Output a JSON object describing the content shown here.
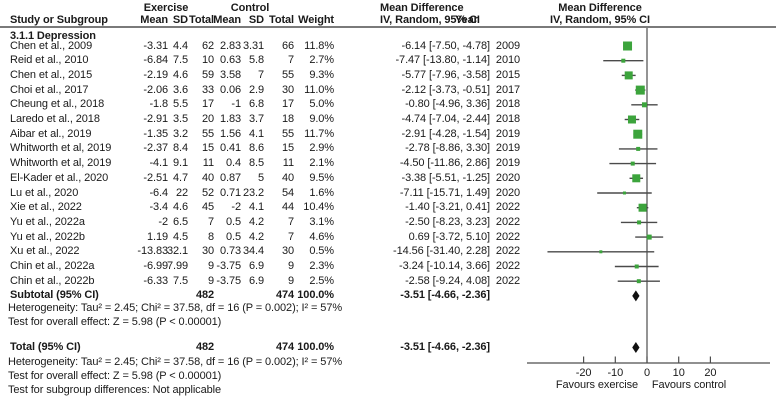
{
  "header": {
    "group_experimental": "Exercise",
    "group_control": "Control",
    "col_study": "Study or Subgroup",
    "col_mean": "Mean",
    "col_sd": "SD",
    "col_total": "Total",
    "col_weight": "Weight",
    "col_md_line1": "Mean Difference",
    "col_md_line2": "IV, Random, 95% CI",
    "col_year": "Year",
    "plot_md_line1": "Mean Difference",
    "plot_md_line2": "IV, Random, 95% CI"
  },
  "section_title": "3.1.1 Depression",
  "notes": {
    "subtotal_heterogeneity": "Heterogeneity: Tau² = 2.45; Chi² = 37.58, df = 16 (P = 0.002); I² = 57%",
    "subtotal_overall": "Test for overall effect: Z = 5.98 (P < 0.00001)",
    "total_heterogeneity": "Heterogeneity: Tau² = 2.45; Chi² = 37.58, df = 16 (P = 0.002); I² = 57%",
    "total_overall": "Test for overall effect: Z = 5.98 (P < 0.00001)",
    "subgroup_differences": "Test for subgroup differences: Not applicable"
  },
  "colors": {
    "marker_green": "#3CA43C",
    "ci_line": "#4a4a4a",
    "axis_line": "#4d4d4d",
    "diamond": "#111111",
    "separator": "#7a7a7a"
  },
  "chart_data": {
    "type": "forest",
    "effect_measure": "Mean Difference, IV, Random, 95% CI",
    "axis": {
      "ticks": [
        -20,
        -10,
        0,
        10,
        20
      ],
      "xlim": [
        -38,
        39
      ],
      "favours_left": "Favours exercise",
      "favours_right": "Favours control"
    },
    "studies": [
      {
        "name": "Chen et al., 2009",
        "mean_e": "-3.31",
        "sd_e": "4.4",
        "n_e": "62",
        "mean_c": "2.83",
        "sd_c": "3.31",
        "n_c": "66",
        "weight": "11.8%",
        "ci": "-6.14 [-7.50, -4.78]",
        "year": "2009",
        "effect": -6.14,
        "low": -7.5,
        "high": -4.78,
        "w": 11.8
      },
      {
        "name": "Reid et al., 2010",
        "mean_e": "-6.84",
        "sd_e": "7.5",
        "n_e": "10",
        "mean_c": "0.63",
        "sd_c": "5.8",
        "n_c": "7",
        "weight": "2.7%",
        "ci": "-7.47 [-13.80, -1.14]",
        "year": "2010",
        "effect": -7.47,
        "low": -13.8,
        "high": -1.14,
        "w": 2.7
      },
      {
        "name": "Chen et al., 2015",
        "mean_e": "-2.19",
        "sd_e": "4.6",
        "n_e": "59",
        "mean_c": "3.58",
        "sd_c": "7",
        "n_c": "55",
        "weight": "9.3%",
        "ci": "-5.77 [-7.96, -3.58]",
        "year": "2015",
        "effect": -5.77,
        "low": -7.96,
        "high": -3.58,
        "w": 9.3
      },
      {
        "name": "Choi et al., 2017",
        "mean_e": "-2.06",
        "sd_e": "3.6",
        "n_e": "33",
        "mean_c": "0.06",
        "sd_c": "2.9",
        "n_c": "30",
        "weight": "11.0%",
        "ci": "-2.12 [-3.73, -0.51]",
        "year": "2017",
        "effect": -2.12,
        "low": -3.73,
        "high": -0.51,
        "w": 11.0
      },
      {
        "name": "Cheung et al., 2018",
        "mean_e": "-1.8",
        "sd_e": "5.5",
        "n_e": "17",
        "mean_c": "-1",
        "sd_c": "6.8",
        "n_c": "17",
        "weight": "5.0%",
        "ci": "-0.80 [-4.96, 3.36]",
        "year": "2018",
        "effect": -0.8,
        "low": -4.96,
        "high": 3.36,
        "w": 5.0
      },
      {
        "name": "Laredo et al., 2018",
        "mean_e": "-2.91",
        "sd_e": "3.5",
        "n_e": "20",
        "mean_c": "1.83",
        "sd_c": "3.7",
        "n_c": "18",
        "weight": "9.0%",
        "ci": "-4.74 [-7.04, -2.44]",
        "year": "2018",
        "effect": -4.74,
        "low": -7.04,
        "high": -2.44,
        "w": 9.0
      },
      {
        "name": "Aibar et al., 2019",
        "mean_e": "-1.35",
        "sd_e": "3.2",
        "n_e": "55",
        "mean_c": "1.56",
        "sd_c": "4.1",
        "n_c": "55",
        "weight": "11.7%",
        "ci": "-2.91 [-4.28, -1.54]",
        "year": "2019",
        "effect": -2.91,
        "low": -4.28,
        "high": -1.54,
        "w": 11.7
      },
      {
        "name": "Whitworth et al, 2019",
        "mean_e": "-2.37",
        "sd_e": "8.4",
        "n_e": "15",
        "mean_c": "0.41",
        "sd_c": "8.6",
        "n_c": "15",
        "weight": "2.9%",
        "ci": "-2.78 [-8.86, 3.30]",
        "year": "2019",
        "effect": -2.78,
        "low": -8.86,
        "high": 3.3,
        "w": 2.9
      },
      {
        "name": "Whitworth et al, 2019",
        "mean_e": "-4.1",
        "sd_e": "9.1",
        "n_e": "11",
        "mean_c": "0.4",
        "sd_c": "8.5",
        "n_c": "11",
        "weight": "2.1%",
        "ci": "-4.50 [-11.86, 2.86]",
        "year": "2019",
        "effect": -4.5,
        "low": -11.86,
        "high": 2.86,
        "w": 2.1
      },
      {
        "name": "El-Kader et al., 2020",
        "mean_e": "-2.51",
        "sd_e": "4.7",
        "n_e": "40",
        "mean_c": "0.87",
        "sd_c": "5",
        "n_c": "40",
        "weight": "9.5%",
        "ci": "-3.38 [-5.51, -1.25]",
        "year": "2020",
        "effect": -3.38,
        "low": -5.51,
        "high": -1.25,
        "w": 9.5
      },
      {
        "name": "Lu et al., 2020",
        "mean_e": "-6.4",
        "sd_e": "22",
        "n_e": "52",
        "mean_c": "0.71",
        "sd_c": "23.2",
        "n_c": "54",
        "weight": "1.6%",
        "ci": "-7.11 [-15.71, 1.49]",
        "year": "2020",
        "effect": -7.11,
        "low": -15.71,
        "high": 1.49,
        "w": 1.6
      },
      {
        "name": "Xie et al., 2022",
        "mean_e": "-3.4",
        "sd_e": "4.6",
        "n_e": "45",
        "mean_c": "-2",
        "sd_c": "4.1",
        "n_c": "44",
        "weight": "10.4%",
        "ci": "-1.40 [-3.21, 0.41]",
        "year": "2022",
        "effect": -1.4,
        "low": -3.21,
        "high": 0.41,
        "w": 10.4
      },
      {
        "name": "Yu et al., 2022a",
        "mean_e": "-2",
        "sd_e": "6.5",
        "n_e": "7",
        "mean_c": "0.5",
        "sd_c": "4.2",
        "n_c": "7",
        "weight": "3.1%",
        "ci": "-2.50 [-8.23, 3.23]",
        "year": "2022",
        "effect": -2.5,
        "low": -8.23,
        "high": 3.23,
        "w": 3.1
      },
      {
        "name": "Yu et al., 2022b",
        "mean_e": "1.19",
        "sd_e": "4.5",
        "n_e": "8",
        "mean_c": "0.5",
        "sd_c": "4.2",
        "n_c": "7",
        "weight": "4.6%",
        "ci": "0.69 [-3.72, 5.10]",
        "year": "2022",
        "effect": 0.69,
        "low": -3.72,
        "high": 5.1,
        "w": 4.6
      },
      {
        "name": "Xu et al., 2022",
        "mean_e": "-13.83",
        "sd_e": "32.1",
        "n_e": "30",
        "mean_c": "0.73",
        "sd_c": "34.4",
        "n_c": "30",
        "weight": "0.5%",
        "ci": "-14.56 [-31.40, 2.28]",
        "year": "2022",
        "effect": -14.56,
        "low": -31.4,
        "high": 2.28,
        "w": 0.5
      },
      {
        "name": "Chin et al., 2022a",
        "mean_e": "-6.99",
        "sd_e": "7.99",
        "n_e": "9",
        "mean_c": "-3.75",
        "sd_c": "6.9",
        "n_c": "9",
        "weight": "2.3%",
        "ci": "-3.24 [-10.14, 3.66]",
        "year": "2022",
        "effect": -3.24,
        "low": -10.14,
        "high": 3.66,
        "w": 2.3
      },
      {
        "name": "Chin et al., 2022b",
        "mean_e": "-6.33",
        "sd_e": "7.5",
        "n_e": "9",
        "mean_c": "-3.75",
        "sd_c": "6.9",
        "n_c": "9",
        "weight": "2.5%",
        "ci": "-2.58 [-9.24, 4.08]",
        "year": "2022",
        "effect": -2.58,
        "low": -9.24,
        "high": 4.08,
        "w": 2.5
      }
    ],
    "subtotal": {
      "label": "Subtotal (95% CI)",
      "n_e": "482",
      "n_c": "474",
      "weight": "100.0%",
      "ci": "-3.51 [-4.66, -2.36]",
      "effect": -3.51,
      "low": -4.66,
      "high": -2.36
    },
    "total": {
      "label": "Total (95% CI)",
      "n_e": "482",
      "n_c": "474",
      "weight": "100.0%",
      "ci": "-3.51 [-4.66, -2.36]",
      "effect": -3.51,
      "low": -4.66,
      "high": -2.36
    }
  }
}
